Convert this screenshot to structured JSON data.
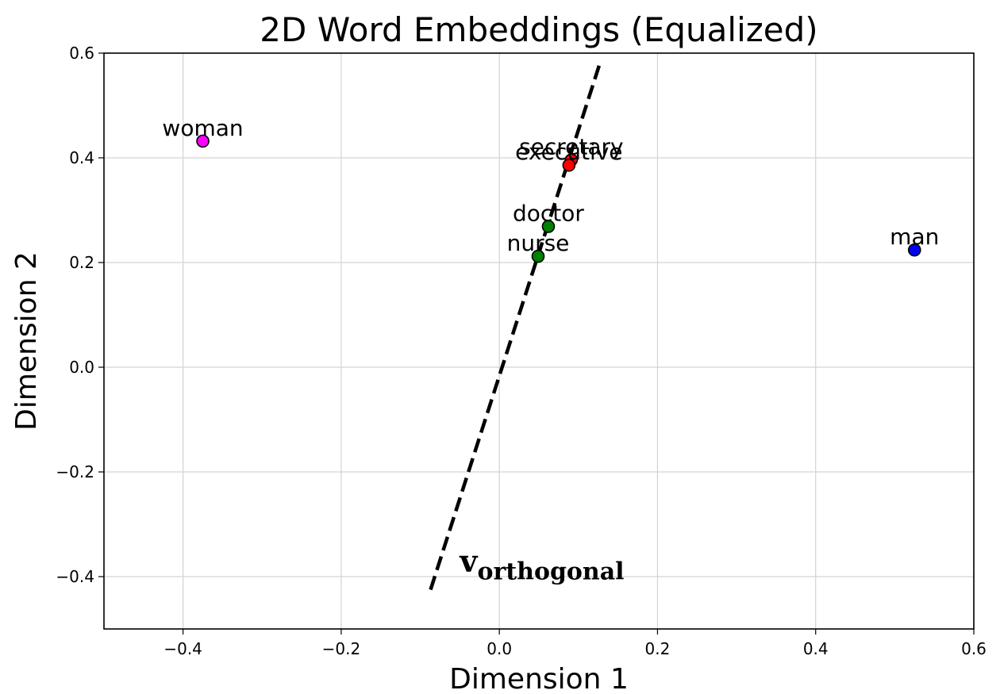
{
  "chart_data": {
    "type": "scatter",
    "title": "2D Word Embeddings (Equalized)",
    "xlabel": "Dimension 1",
    "ylabel": "Dimension 2",
    "xlim": [
      -0.5,
      0.6
    ],
    "ylim": [
      -0.5,
      0.6
    ],
    "xticks": [
      -0.4,
      -0.2,
      0.0,
      0.2,
      0.4,
      0.6
    ],
    "yticks": [
      -0.4,
      -0.2,
      0.0,
      0.2,
      0.4,
      0.6
    ],
    "xtick_labels": [
      "−0.4",
      "−0.2",
      "0.0",
      "0.2",
      "0.4",
      "0.6"
    ],
    "ytick_labels": [
      "−0.4",
      "−0.2",
      "0.0",
      "0.2",
      "0.4",
      "0.6"
    ],
    "grid": true,
    "points": [
      {
        "label": "woman",
        "x": -0.375,
        "y": 0.432,
        "color": "#ff00ff"
      },
      {
        "label": "man",
        "x": 0.525,
        "y": 0.224,
        "color": "#0000ff"
      },
      {
        "label": "doctor",
        "x": 0.062,
        "y": 0.269,
        "color": "#008000"
      },
      {
        "label": "nurse",
        "x": 0.049,
        "y": 0.212,
        "color": "#008000"
      },
      {
        "label": "secretary",
        "x": 0.091,
        "y": 0.396,
        "color": "#ff0000"
      },
      {
        "label": "executive",
        "x": 0.088,
        "y": 0.386,
        "color": "#ff0000"
      }
    ],
    "line": {
      "style": "dashed",
      "color": "#000000",
      "x": [
        -0.087,
        0.127
      ],
      "y": [
        -0.425,
        0.58
      ]
    },
    "annotation": {
      "base": "v",
      "subscript": "orthogonal",
      "x": -0.05,
      "y": -0.39
    }
  }
}
